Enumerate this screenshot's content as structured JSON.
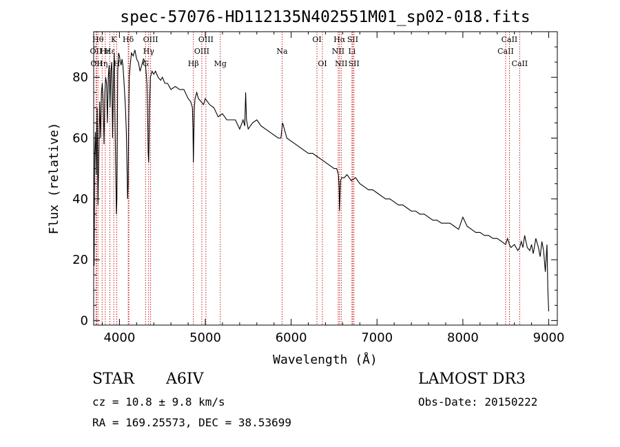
{
  "chart_data": {
    "type": "line",
    "title": "spec-57076-HD112135N402551M01_sp02-018.fits",
    "xlabel": "Wavelength (Å)",
    "ylabel": "Flux (relative)",
    "xlim": [
      3700,
      9100
    ],
    "ylim": [
      -1.5,
      95
    ],
    "x_ticks": [
      4000,
      5000,
      6000,
      7000,
      8000,
      9000
    ],
    "y_ticks": [
      0,
      20,
      40,
      60,
      80
    ],
    "x_tick_labels": [
      "4000",
      "5000",
      "6000",
      "7000",
      "8000",
      "9000"
    ],
    "y_tick_labels": [
      "0",
      "20",
      "40",
      "60",
      "80"
    ],
    "grid": false,
    "series": [
      {
        "name": "spectrum",
        "color": "#000000",
        "x": [
          3700,
          3705,
          3712,
          3720,
          3730,
          3740,
          3750,
          3760,
          3770,
          3780,
          3790,
          3800,
          3810,
          3820,
          3830,
          3840,
          3850,
          3860,
          3870,
          3880,
          3890,
          3900,
          3910,
          3920,
          3930,
          3940,
          3950,
          3960,
          3965,
          3970,
          3975,
          3980,
          3990,
          4000,
          4010,
          4020,
          4030,
          4040,
          4050,
          4060,
          4070,
          4080,
          4090,
          4095,
          4102,
          4108,
          4115,
          4125,
          4140,
          4160,
          4180,
          4200,
          4220,
          4240,
          4260,
          4280,
          4300,
          4310,
          4320,
          4330,
          4335,
          4340,
          4345,
          4350,
          4360,
          4380,
          4400,
          4420,
          4450,
          4480,
          4500,
          4530,
          4560,
          4600,
          4650,
          4700,
          4750,
          4800,
          4830,
          4850,
          4856,
          4861,
          4866,
          4872,
          4880,
          4900,
          4920,
          4950,
          4980,
          5000,
          5050,
          5100,
          5150,
          5200,
          5250,
          5300,
          5350,
          5400,
          5440,
          5460,
          5470,
          5480,
          5500,
          5550,
          5600,
          5650,
          5700,
          5750,
          5800,
          5850,
          5880,
          5900,
          5950,
          6000,
          6050,
          6100,
          6150,
          6200,
          6250,
          6300,
          6350,
          6400,
          6450,
          6500,
          6530,
          6550,
          6558,
          6563,
          6568,
          6575,
          6590,
          6620,
          6650,
          6700,
          6750,
          6800,
          6850,
          6900,
          6950,
          7000,
          7050,
          7100,
          7150,
          7200,
          7250,
          7300,
          7350,
          7400,
          7450,
          7500,
          7550,
          7600,
          7650,
          7700,
          7750,
          7800,
          7850,
          7900,
          7950,
          8000,
          8050,
          8100,
          8150,
          8200,
          8250,
          8300,
          8350,
          8400,
          8450,
          8498,
          8520,
          8542,
          8560,
          8600,
          8640,
          8662,
          8680,
          8700,
          8720,
          8750,
          8780,
          8800,
          8820,
          8850,
          8880,
          8900,
          8920,
          8940,
          8960,
          8980,
          8990,
          9000
        ],
        "values": [
          25,
          18,
          55,
          62,
          48,
          70,
          38,
          55,
          72,
          60,
          75,
          78,
          72,
          58,
          75,
          80,
          78,
          65,
          80,
          84,
          70,
          82,
          85,
          60,
          80,
          88,
          62,
          44,
          35,
          40,
          62,
          82,
          88,
          87,
          85,
          84,
          86,
          84,
          80,
          75,
          70,
          62,
          48,
          40,
          45,
          65,
          80,
          84,
          88,
          87,
          89,
          86,
          85,
          82,
          84,
          86,
          85,
          82,
          78,
          65,
          55,
          52,
          58,
          70,
          80,
          82,
          81,
          82,
          80,
          79,
          80,
          78,
          78,
          76,
          77,
          76,
          76,
          73,
          72,
          70,
          63,
          52,
          60,
          70,
          73,
          75,
          73,
          72,
          71,
          73,
          71,
          70,
          67,
          68,
          66,
          66,
          66,
          63,
          66,
          64,
          75,
          66,
          63,
          65,
          66,
          64,
          63,
          62,
          61,
          60,
          60,
          65,
          60,
          59,
          58,
          57,
          56,
          55,
          55,
          54,
          53,
          52,
          51,
          50,
          50,
          48,
          44,
          36,
          40,
          46,
          47,
          47,
          48,
          46,
          47,
          45,
          44,
          43,
          43,
          42,
          41,
          40,
          40,
          39,
          38,
          38,
          37,
          36,
          36,
          35,
          35,
          34,
          33,
          33,
          32,
          32,
          32,
          31,
          30,
          34,
          31,
          30,
          29,
          29,
          28,
          28,
          27,
          27,
          26,
          25,
          27,
          25,
          24,
          25,
          23,
          24,
          26,
          24,
          28,
          24,
          23,
          25,
          22,
          27,
          24,
          21,
          26,
          23,
          16,
          25,
          10,
          3
        ]
      }
    ],
    "line_markers": [
      {
        "wavelength": 3727,
        "label": "OII",
        "row": 2
      },
      {
        "wavelength": 3734,
        "label": "OII",
        "row": 3
      },
      {
        "wavelength": 3750,
        "label": "Hθ",
        "row": 1
      },
      {
        "wavelength": 3798,
        "label": "Hη",
        "row": 3
      },
      {
        "wavelength": 3835,
        "label": "Hε",
        "row": 2
      },
      {
        "wavelength": 3889,
        "label": "Hε",
        "row": 2
      },
      {
        "wavelength": 3934,
        "label": "K",
        "row": 1
      },
      {
        "wavelength": 3969,
        "label": "H",
        "row": 3
      },
      {
        "wavelength": 4102,
        "label": "Hδ",
        "row": 1
      },
      {
        "wavelength": 4110,
        "label": "",
        "row": 2
      },
      {
        "wavelength": 4304,
        "label": "G",
        "row": 3
      },
      {
        "wavelength": 4340,
        "label": "Hγ",
        "row": 2
      },
      {
        "wavelength": 4363,
        "label": "OIII",
        "row": 1
      },
      {
        "wavelength": 4861,
        "label": "Hβ",
        "row": 3
      },
      {
        "wavelength": 4959,
        "label": "OIII",
        "row": 2
      },
      {
        "wavelength": 5007,
        "label": "OIII",
        "row": 1
      },
      {
        "wavelength": 5175,
        "label": "Mg",
        "row": 3
      },
      {
        "wavelength": 5894,
        "label": "Na",
        "row": 2
      },
      {
        "wavelength": 6300,
        "label": "OI",
        "row": 1
      },
      {
        "wavelength": 6364,
        "label": "OI",
        "row": 3
      },
      {
        "wavelength": 6548,
        "label": "NII",
        "row": 2
      },
      {
        "wavelength": 6563,
        "label": "Hα",
        "row": 1
      },
      {
        "wavelength": 6583,
        "label": "NII",
        "row": 3
      },
      {
        "wavelength": 6708,
        "label": "Li",
        "row": 2
      },
      {
        "wavelength": 6717,
        "label": "SII",
        "row": 1
      },
      {
        "wavelength": 6731,
        "label": "SII",
        "row": 3
      },
      {
        "wavelength": 8498,
        "label": "CaII",
        "row": 2
      },
      {
        "wavelength": 8542,
        "label": "CaII",
        "row": 1
      },
      {
        "wavelength": 8662,
        "label": "CaII",
        "row": 3
      }
    ]
  },
  "info": {
    "object_type": "STAR",
    "spectral_class": "A6IV",
    "survey": "LAMOST DR3",
    "redshift_line": "cz = 10.8 ± 9.8 km/s",
    "obs_date_line": "Obs-Date: 20150222",
    "coords_line": "RA = 169.25573, DEC =  38.53699"
  }
}
